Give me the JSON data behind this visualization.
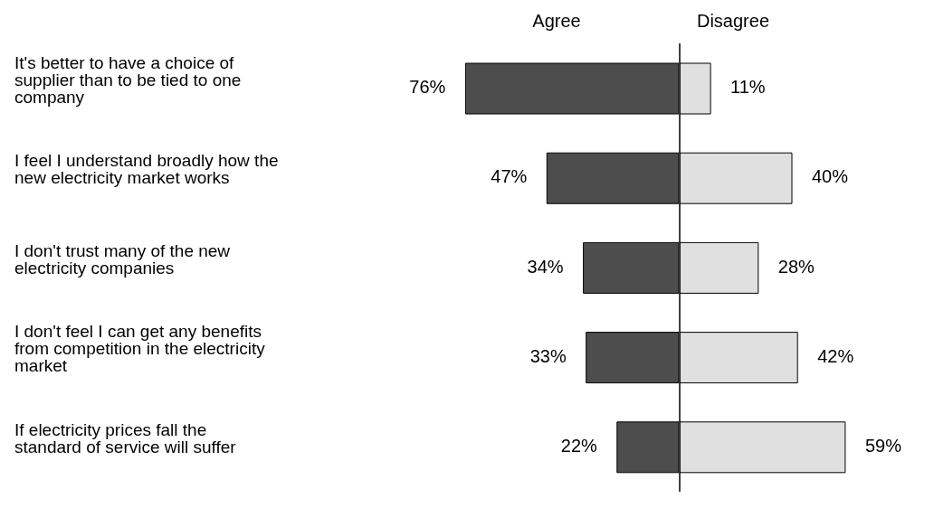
{
  "chart_data": [
    {
      "type": "bar",
      "orientation": "horizontal",
      "title": "Agree",
      "categories": [
        "It's better to have a choice of supplier than to be tied to one company",
        "I feel I understand broadly how  the new electricity market works",
        "I don't trust many of the new electricity companies",
        "I don't feel I can get any benefits from competition in the electricity market",
        "If electricity prices fall the standard of service will suffer"
      ],
      "series": [
        {
          "color": "#4d4d4d",
          "values": [
            76,
            47,
            34,
            33,
            22
          ],
          "value_labels": [
            "76%",
            "47%",
            "34%",
            "33%",
            "22%"
          ]
        }
      ]
    },
    {
      "type": "bar",
      "orientation": "horizontal",
      "title": "Disagree",
      "categories": [
        null,
        null,
        null,
        null,
        null
      ],
      "series": [
        {
          "color": "#e0e0e0",
          "values": [
            11,
            40,
            28,
            42,
            59
          ],
          "value_labels": [
            "11%",
            "40%",
            "28%",
            "42%",
            "59%"
          ]
        }
      ]
    }
  ]
}
